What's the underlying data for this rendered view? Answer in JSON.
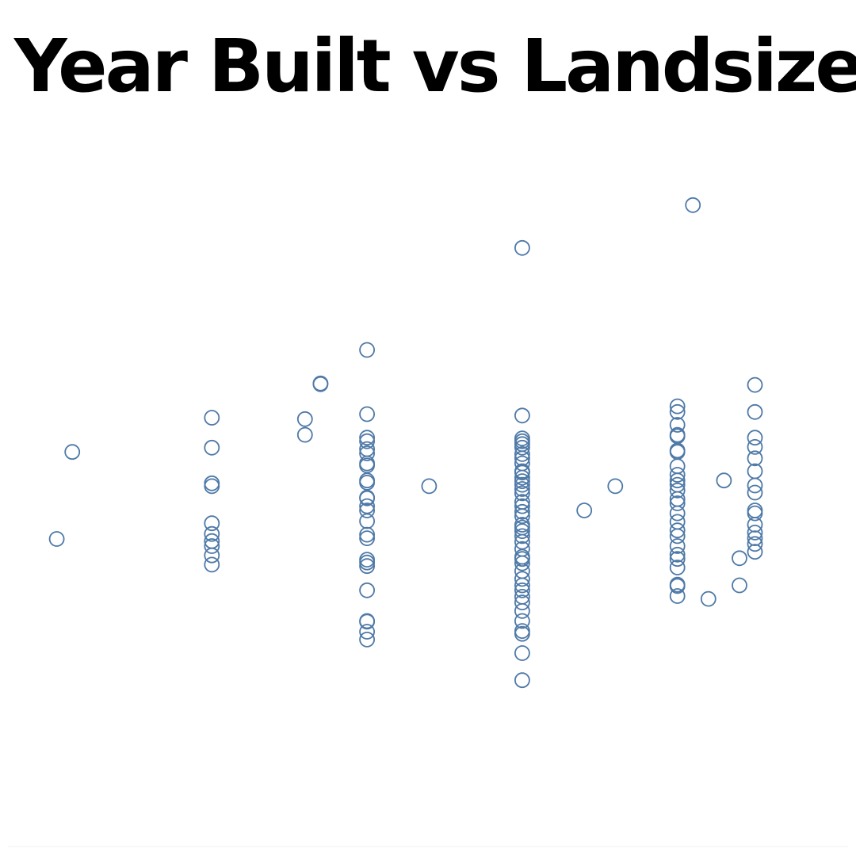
{
  "chart_data": {
    "type": "scatter",
    "title": "Year Built vs Landsize",
    "xlabel": "",
    "ylabel": "",
    "grid": false,
    "marker": "hollow-circle",
    "color": "#4e79a7",
    "background": "#ffffff",
    "x_domain": [
      1,
      53
    ],
    "y_domain": [
      0,
      1000
    ],
    "points": [
      [
        2,
        400
      ],
      [
        3,
        522
      ],
      [
        12,
        570
      ],
      [
        12,
        528
      ],
      [
        12,
        478
      ],
      [
        12,
        474
      ],
      [
        12,
        422
      ],
      [
        12,
        407
      ],
      [
        12,
        397
      ],
      [
        12,
        390
      ],
      [
        12,
        377
      ],
      [
        12,
        364
      ],
      [
        18,
        568
      ],
      [
        18,
        546
      ],
      [
        19,
        618
      ],
      [
        19,
        617
      ],
      [
        22,
        665
      ],
      [
        22,
        575
      ],
      [
        22,
        542
      ],
      [
        22,
        537
      ],
      [
        22,
        526
      ],
      [
        22,
        520
      ],
      [
        22,
        506
      ],
      [
        22,
        503
      ],
      [
        22,
        482
      ],
      [
        22,
        479
      ],
      [
        22,
        458
      ],
      [
        22,
        457
      ],
      [
        22,
        446
      ],
      [
        22,
        440
      ],
      [
        22,
        425
      ],
      [
        22,
        406
      ],
      [
        22,
        401
      ],
      [
        22,
        371
      ],
      [
        22,
        367
      ],
      [
        22,
        362
      ],
      [
        22,
        328
      ],
      [
        22,
        285
      ],
      [
        22,
        284
      ],
      [
        22,
        270
      ],
      [
        22,
        259
      ],
      [
        26,
        474
      ],
      [
        36,
        440
      ],
      [
        38,
        474
      ],
      [
        32,
        808
      ],
      [
        32,
        573
      ],
      [
        32,
        541
      ],
      [
        32,
        537
      ],
      [
        32,
        533
      ],
      [
        32,
        528
      ],
      [
        32,
        519
      ],
      [
        32,
        513
      ],
      [
        32,
        506
      ],
      [
        32,
        495
      ],
      [
        32,
        493
      ],
      [
        32,
        486
      ],
      [
        32,
        481
      ],
      [
        32,
        476
      ],
      [
        32,
        470
      ],
      [
        32,
        464
      ],
      [
        32,
        452
      ],
      [
        32,
        446
      ],
      [
        32,
        438
      ],
      [
        32,
        432
      ],
      [
        32,
        420
      ],
      [
        32,
        416
      ],
      [
        32,
        411
      ],
      [
        32,
        404
      ],
      [
        32,
        396
      ],
      [
        32,
        386
      ],
      [
        32,
        375
      ],
      [
        32,
        372
      ],
      [
        32,
        366
      ],
      [
        32,
        355
      ],
      [
        32,
        344
      ],
      [
        32,
        335
      ],
      [
        32,
        328
      ],
      [
        32,
        319
      ],
      [
        32,
        311
      ],
      [
        32,
        299
      ],
      [
        32,
        285
      ],
      [
        32,
        271
      ],
      [
        32,
        267
      ],
      [
        32,
        240
      ],
      [
        32,
        202
      ],
      [
        43,
        868
      ],
      [
        42,
        586
      ],
      [
        42,
        578
      ],
      [
        42,
        560
      ],
      [
        42,
        546
      ],
      [
        42,
        544
      ],
      [
        42,
        524
      ],
      [
        42,
        522
      ],
      [
        42,
        502
      ],
      [
        42,
        490
      ],
      [
        42,
        482
      ],
      [
        42,
        476
      ],
      [
        42,
        468
      ],
      [
        42,
        456
      ],
      [
        42,
        450
      ],
      [
        42,
        436
      ],
      [
        42,
        424
      ],
      [
        42,
        412
      ],
      [
        42,
        404
      ],
      [
        42,
        390
      ],
      [
        42,
        378
      ],
      [
        42,
        372
      ],
      [
        42,
        360
      ],
      [
        42,
        336
      ],
      [
        42,
        334
      ],
      [
        42,
        320
      ],
      [
        44,
        316
      ],
      [
        45,
        482
      ],
      [
        46,
        373
      ],
      [
        46,
        335
      ],
      [
        47,
        616
      ],
      [
        47,
        578
      ],
      [
        47,
        542
      ],
      [
        47,
        529
      ],
      [
        47,
        513
      ],
      [
        47,
        495
      ],
      [
        47,
        475
      ],
      [
        47,
        465
      ],
      [
        47,
        440
      ],
      [
        47,
        436
      ],
      [
        47,
        420
      ],
      [
        47,
        409
      ],
      [
        47,
        401
      ],
      [
        47,
        393
      ],
      [
        47,
        382
      ]
    ]
  }
}
